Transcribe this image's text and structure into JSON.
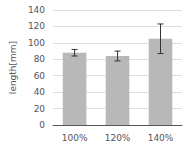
{
  "chart_data": {
    "type": "bar",
    "categories": [
      "100%",
      "120%",
      "140%"
    ],
    "values": [
      88,
      84,
      105
    ],
    "errors": [
      4,
      6,
      18
    ],
    "color": "#b8b8b8",
    "ylabel": "length[mm]",
    "ylim": [
      0,
      140
    ],
    "yticks": [
      0,
      20,
      40,
      60,
      80,
      100,
      120,
      140
    ],
    "grid": true
  }
}
